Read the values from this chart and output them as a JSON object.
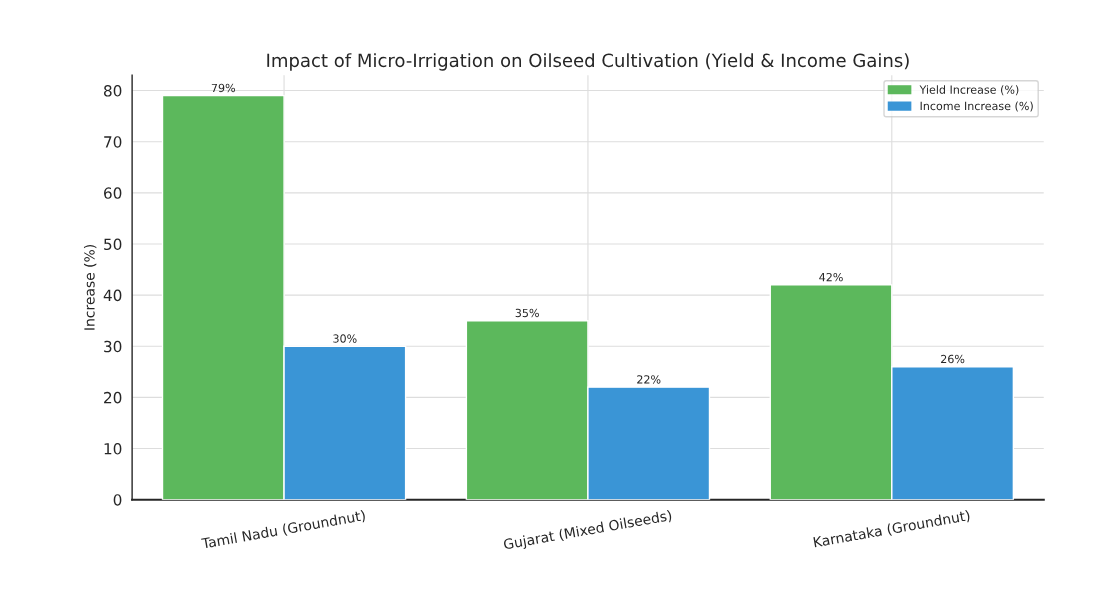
{
  "chart_data": {
    "type": "bar",
    "title": "Impact of Micro-Irrigation on Oilseed Cultivation (Yield & Income Gains)",
    "ylabel": "Increase (%)",
    "categories": [
      "Tamil Nadu (Groundnut)",
      "Gujarat (Mixed Oilseeds)",
      "Karnataka (Groundnut)"
    ],
    "series": [
      {
        "name": "Yield Increase (%)",
        "color": "#5cb85c",
        "values": [
          79,
          35,
          42
        ],
        "value_labels": [
          "79%",
          "35%",
          "42%"
        ]
      },
      {
        "name": "Income Increase (%)",
        "color": "#3a95d6",
        "values": [
          30,
          22,
          26
        ],
        "value_labels": [
          "30%",
          "22%",
          "26%"
        ]
      }
    ],
    "ylim": [
      0,
      83
    ],
    "yticks": [
      0,
      10,
      20,
      30,
      40,
      50,
      60,
      70,
      80
    ],
    "grid": true,
    "legend": "top right"
  }
}
